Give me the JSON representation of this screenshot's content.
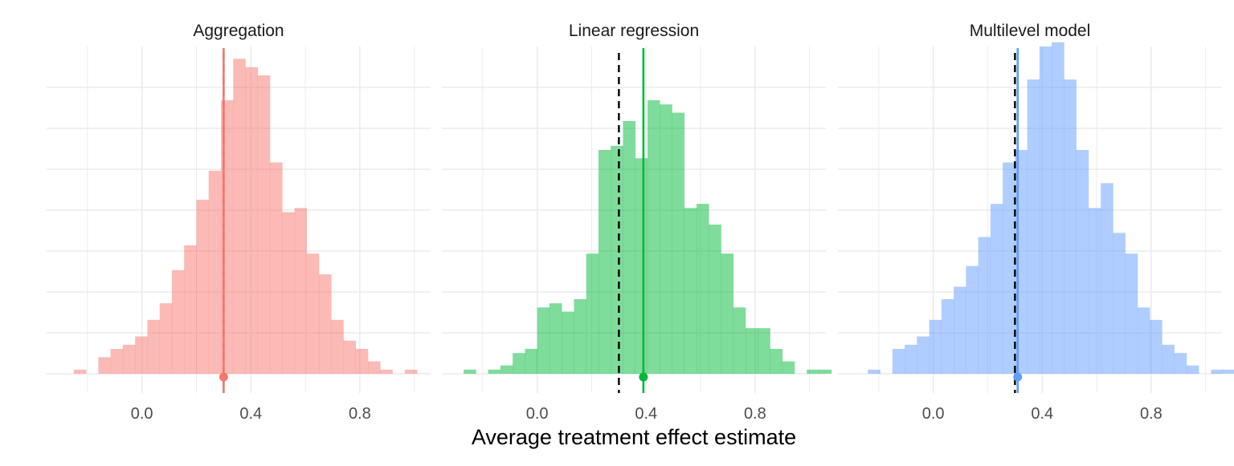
{
  "chart_data": {
    "type": "bar",
    "xlabel": "Average treatment effect estimate",
    "ylabel": "",
    "xlim": [
      -0.35,
      1.06
    ],
    "ylim": [
      0,
      78
    ],
    "x_ticks": [
      "0.0",
      "0.4",
      "0.8"
    ],
    "x_tick_values": [
      0.0,
      0.4,
      0.8
    ],
    "grid": true,
    "bin_width": 0.045,
    "true_value": 0.3,
    "panels": [
      {
        "title": "Aggregation",
        "color": "#F8766D",
        "bin_start": -0.25,
        "counts": [
          1,
          0,
          4,
          6,
          7,
          9,
          13,
          17,
          25,
          31,
          42,
          49,
          66,
          76,
          74,
          72,
          51,
          39,
          40,
          29,
          24,
          13,
          8,
          6,
          3,
          1,
          0,
          1
        ],
        "mean": 0.3
      },
      {
        "title": "Linear regression",
        "color": "#00BA38",
        "bin_start": -0.27,
        "counts": [
          1,
          0,
          1,
          2,
          5,
          6,
          16,
          17,
          15,
          18,
          29,
          54,
          55,
          61,
          52,
          66,
          65,
          63,
          40,
          41,
          36,
          29,
          16,
          11,
          11,
          6,
          3,
          0,
          1,
          1
        ],
        "mean": 0.39
      },
      {
        "title": "Multilevel model",
        "color": "#619CFF",
        "bin_start": -0.24,
        "counts": [
          1,
          0,
          6,
          7,
          9,
          13,
          18,
          21,
          26,
          33,
          41,
          51,
          54,
          71,
          79,
          80,
          71,
          54,
          40,
          46,
          34,
          29,
          16,
          13,
          7,
          5,
          2,
          0,
          1,
          1
        ],
        "mean": 0.31
      }
    ]
  }
}
